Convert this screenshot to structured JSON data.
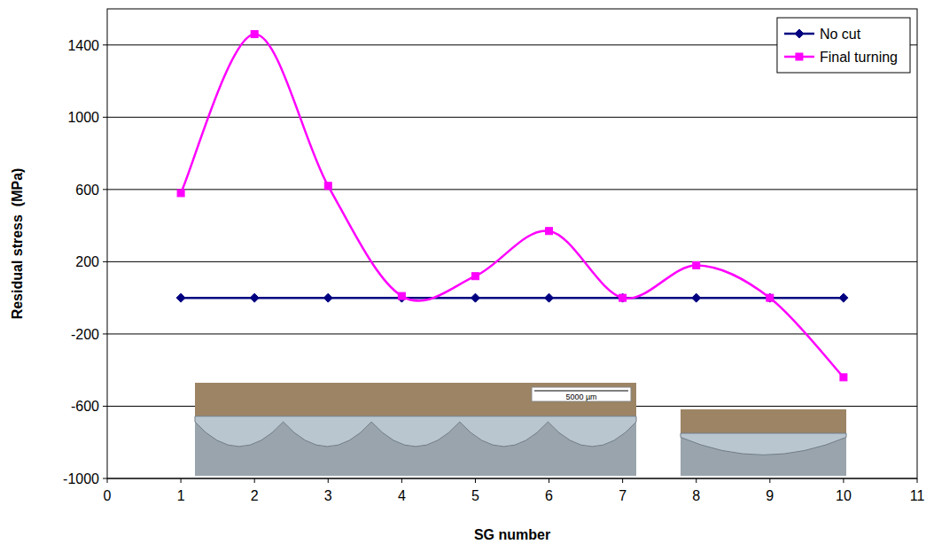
{
  "chart_data": {
    "type": "line",
    "x_label": "SG number",
    "y_label": "Residual stress  (MPa)",
    "x": [
      1,
      2,
      3,
      4,
      5,
      6,
      7,
      8,
      9,
      10
    ],
    "series": [
      {
        "name": "No cut",
        "color": "#000080",
        "marker": "diamond",
        "line_style": "solid",
        "values": [
          0,
          0,
          0,
          0,
          0,
          0,
          0,
          0,
          0,
          0
        ]
      },
      {
        "name": "Final turning",
        "color": "#ff00ff",
        "marker": "square",
        "line_style": "smooth",
        "values": [
          580,
          1460,
          620,
          10,
          120,
          370,
          0,
          180,
          0,
          -440
        ]
      }
    ],
    "xlim": [
      0,
      11
    ],
    "xticks": [
      0,
      1,
      2,
      3,
      4,
      5,
      6,
      7,
      8,
      9,
      10,
      11
    ],
    "ylim": [
      -1000,
      1600
    ],
    "yticks": [
      -1000,
      -600,
      -200,
      200,
      600,
      1000,
      1400
    ],
    "grid": true,
    "legend": "top-right",
    "annotations": [
      "5000 µm"
    ]
  }
}
